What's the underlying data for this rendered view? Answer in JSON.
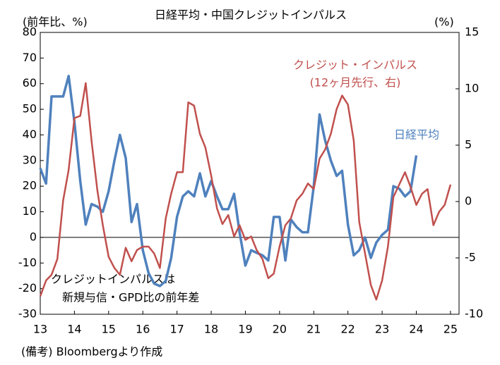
{
  "chart_data": {
    "type": "line",
    "title": "日経平均・中国クレジットインパルス",
    "y_axis_label": "(前年比、%)",
    "y2_axis_label": "(%)",
    "annotations": [
      "クレジット・インパルス",
      "(12ヶ月先行、右)",
      "日経平均",
      "クレジットインパルスは",
      "新規与信・GPD比の前年差"
    ],
    "note": "(備考) Bloombergより作成",
    "x": [
      2013,
      2013.17,
      2013.33,
      2013.5,
      2013.67,
      2013.83,
      2014,
      2014.17,
      2014.33,
      2014.5,
      2014.67,
      2014.83,
      2015,
      2015.17,
      2015.33,
      2015.5,
      2015.67,
      2015.83,
      2016,
      2016.17,
      2016.33,
      2016.5,
      2016.67,
      2016.83,
      2017,
      2017.17,
      2017.33,
      2017.5,
      2017.67,
      2017.83,
      2018,
      2018.17,
      2018.33,
      2018.5,
      2018.67,
      2018.83,
      2019,
      2019.17,
      2019.33,
      2019.5,
      2019.67,
      2019.83,
      2020,
      2020.17,
      2020.33,
      2020.5,
      2020.67,
      2020.83,
      2021,
      2021.17,
      2021.33,
      2021.5,
      2021.67,
      2021.83,
      2022,
      2022.17,
      2022.33,
      2022.5,
      2022.67,
      2022.83,
      2023,
      2023.17,
      2023.33,
      2023.5,
      2023.67,
      2023.83,
      2024,
      2024.17,
      2024.33,
      2024.5,
      2024.67,
      2024.83,
      2025
    ],
    "series": [
      {
        "name": "日経平均",
        "color": "#4f81bd",
        "axis": "y",
        "values": [
          27,
          21,
          55,
          55,
          55,
          63,
          45,
          22,
          5,
          13,
          12,
          10,
          18,
          30,
          40,
          31,
          6,
          13,
          -5,
          -14,
          -18,
          -19,
          -17,
          -8,
          8,
          16,
          18,
          16,
          25,
          16,
          22,
          16,
          11,
          11,
          17,
          2,
          -11,
          -5,
          -6,
          -7,
          -9,
          8,
          8,
          -9,
          7,
          4,
          2,
          2,
          20,
          48,
          38,
          30,
          24,
          26,
          5,
          -7,
          -5,
          0,
          -8,
          -2,
          1,
          3,
          20,
          19,
          16,
          18,
          32,
          null,
          null,
          null,
          null,
          null,
          null
        ]
      },
      {
        "name": "クレジット・インパルス",
        "color": "#c0504d",
        "axis": "y2",
        "values": [
          -8.4,
          -7.0,
          -6.5,
          -5.1,
          0.1,
          2.8,
          7.4,
          7.6,
          10.5,
          5.4,
          1.0,
          -2.1,
          -4.9,
          -5.9,
          -6.5,
          -4.1,
          -5.3,
          -4.3,
          -4.0,
          -4.0,
          -4.6,
          -5.9,
          -1.5,
          0.7,
          2.6,
          2.6,
          8.8,
          8.5,
          6.0,
          4.8,
          2.3,
          -0.6,
          -2.0,
          -1.2,
          -3.1,
          -2.1,
          -3.4,
          -3.1,
          -4.3,
          -5.1,
          -6.8,
          -6.4,
          -4.0,
          -2.1,
          -1.5,
          0.1,
          0.7,
          1.6,
          1.1,
          3.8,
          4.6,
          6.0,
          8.2,
          9.4,
          8.6,
          5.4,
          -1.8,
          -4.6,
          -7.4,
          -8.7,
          -7.0,
          -4.0,
          0.4,
          1.5,
          2.6,
          1.3,
          -0.3,
          0.7,
          1.1,
          -2.1,
          -0.9,
          -0.3,
          1.5
        ]
      }
    ],
    "xlim": [
      2013,
      2025.25
    ],
    "xticks": [
      {
        "value": 2013,
        "label": "13"
      },
      {
        "value": 2014,
        "label": "14"
      },
      {
        "value": 2015,
        "label": "15"
      },
      {
        "value": 2016,
        "label": "16"
      },
      {
        "value": 2017,
        "label": "17"
      },
      {
        "value": 2018,
        "label": "18"
      },
      {
        "value": 2019,
        "label": "19"
      },
      {
        "value": 2020,
        "label": "20"
      },
      {
        "value": 2021,
        "label": "21"
      },
      {
        "value": 2022,
        "label": "22"
      },
      {
        "value": 2023,
        "label": "23"
      },
      {
        "value": 2024,
        "label": "24"
      },
      {
        "value": 2025,
        "label": "25"
      }
    ],
    "ylim": [
      -30,
      80
    ],
    "yticks": [
      -30,
      -20,
      -10,
      0,
      10,
      20,
      30,
      40,
      50,
      60,
      70,
      80
    ],
    "y2lim": [
      -10,
      15
    ],
    "y2ticks": [
      -10,
      -5,
      0,
      5,
      10,
      15
    ],
    "grid": false
  }
}
